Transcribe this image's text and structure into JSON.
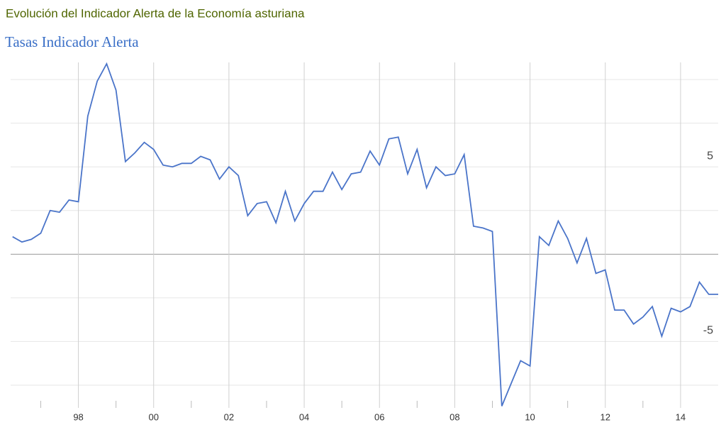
{
  "chart_data": {
    "type": "line",
    "title": "Evolución del Indicador Alerta de la Economía asturiana",
    "subtitle": "Tasas Indicador Alerta",
    "x": [
      1996.25,
      1996.5,
      1996.75,
      1997,
      1997.25,
      1997.5,
      1997.75,
      1998,
      1998.25,
      1998.5,
      1998.75,
      1999,
      1999.25,
      1999.5,
      1999.75,
      2000,
      2000.25,
      2000.5,
      2000.75,
      2001,
      2001.25,
      2001.5,
      2001.75,
      2002,
      2002.25,
      2002.5,
      2002.75,
      2003,
      2003.25,
      2003.5,
      2003.75,
      2004,
      2004.25,
      2004.5,
      2004.75,
      2005,
      2005.25,
      2005.5,
      2005.75,
      2006,
      2006.25,
      2006.5,
      2006.75,
      2007,
      2007.25,
      2007.5,
      2007.75,
      2008,
      2008.25,
      2008.5,
      2008.75,
      2009,
      2009.25,
      2009.5,
      2009.75,
      2010,
      2010.25,
      2010.5,
      2010.75,
      2011,
      2011.25,
      2011.5,
      2011.75,
      2012,
      2012.25,
      2012.5,
      2012.75,
      2013,
      2013.25,
      2013.5,
      2013.75,
      2014,
      2014.25,
      2014.5,
      2014.75,
      2015
    ],
    "series": [
      {
        "name": "Tasas Indicador Alerta",
        "color": "#4a74c9",
        "values": [
          1.0,
          0.7,
          0.85,
          1.2,
          2.5,
          2.4,
          3.1,
          3.0,
          7.9,
          9.9,
          10.9,
          9.4,
          5.3,
          5.8,
          6.4,
          6.0,
          5.1,
          5.0,
          5.2,
          5.2,
          5.6,
          5.4,
          4.3,
          5.0,
          4.5,
          2.2,
          2.9,
          3.0,
          1.8,
          3.6,
          1.9,
          2.9,
          3.6,
          3.6,
          4.7,
          3.7,
          4.6,
          4.7,
          5.9,
          5.1,
          6.6,
          6.7,
          4.6,
          6.0,
          3.8,
          5.0,
          4.5,
          4.6,
          5.7,
          1.6,
          1.5,
          1.3,
          -8.7,
          -7.4,
          -6.1,
          -6.4,
          1.0,
          0.5,
          1.9,
          0.9,
          -0.5,
          0.9,
          -1.1,
          -0.9,
          -3.2,
          -3.2,
          -4.0,
          -3.6,
          -3.0,
          -4.7,
          -3.1,
          -3.3,
          -3.0,
          -1.6,
          -2.3,
          -2.3
        ]
      }
    ],
    "xlim": [
      1996.2,
      2015
    ],
    "xticks": [
      {
        "value": 1998,
        "label": "98"
      },
      {
        "value": 2000,
        "label": "00"
      },
      {
        "value": 2002,
        "label": "02"
      },
      {
        "value": 2004,
        "label": "04"
      },
      {
        "value": 2006,
        "label": "06"
      },
      {
        "value": 2008,
        "label": "08"
      },
      {
        "value": 2010,
        "label": "10"
      },
      {
        "value": 2012,
        "label": "12"
      },
      {
        "value": 2014,
        "label": "14"
      }
    ],
    "minor_xticks": [
      1997,
      1999,
      2001,
      2003,
      2005,
      2007,
      2009,
      2011,
      2013
    ],
    "ylim": [
      -8.8,
      11.1
    ],
    "yticks": [
      -5,
      5
    ],
    "minor_yticks": [
      -7.5,
      -2.5,
      0,
      2.5,
      7.5,
      10
    ],
    "grid": true
  }
}
